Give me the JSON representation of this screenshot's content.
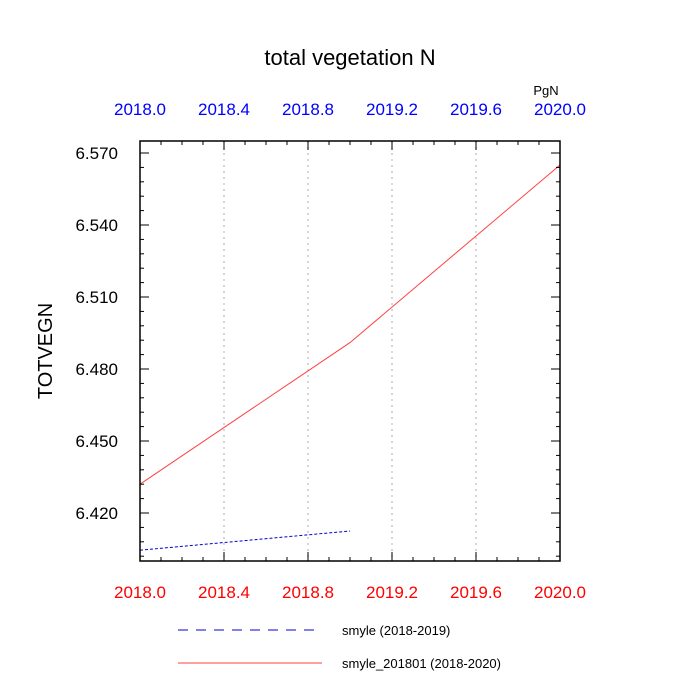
{
  "chart_data": {
    "type": "line",
    "title": "total vegetation N",
    "ylabel": "TOTVEGN",
    "units_label": "PgN",
    "xlabel": "",
    "xlim": [
      2018.0,
      2020.0
    ],
    "ylim": [
      6.4,
      6.575
    ],
    "x_ticks": [
      "2018.0",
      "2018.4",
      "2018.8",
      "2019.2",
      "2019.6",
      "2020.0"
    ],
    "x_tick_values": [
      2018.0,
      2018.4,
      2018.8,
      2019.2,
      2019.6,
      2020.0
    ],
    "y_ticks": [
      "6.420",
      "6.450",
      "6.480",
      "6.510",
      "6.540",
      "6.570"
    ],
    "y_tick_values": [
      6.42,
      6.45,
      6.48,
      6.51,
      6.54,
      6.57
    ],
    "grid": "vertical dotted at x ticks",
    "legend_placement": "bottom",
    "colors": {
      "top_axis_labels": "#0000ff",
      "bottom_axis_labels": "#ff0000",
      "grid": "#c8c8c8"
    },
    "series": [
      {
        "name": "smyle (2018-2019)",
        "color": "#0000cc",
        "dash": "dashed",
        "x": [
          2018.0,
          2019.0
        ],
        "y": [
          6.4045,
          6.4125
        ]
      },
      {
        "name": "smyle_201801 (2018-2020)",
        "color": "#ff4040",
        "dash": "solid",
        "x": [
          2018.0,
          2019.0,
          2020.0
        ],
        "y": [
          6.432,
          6.491,
          6.565
        ]
      }
    ]
  }
}
